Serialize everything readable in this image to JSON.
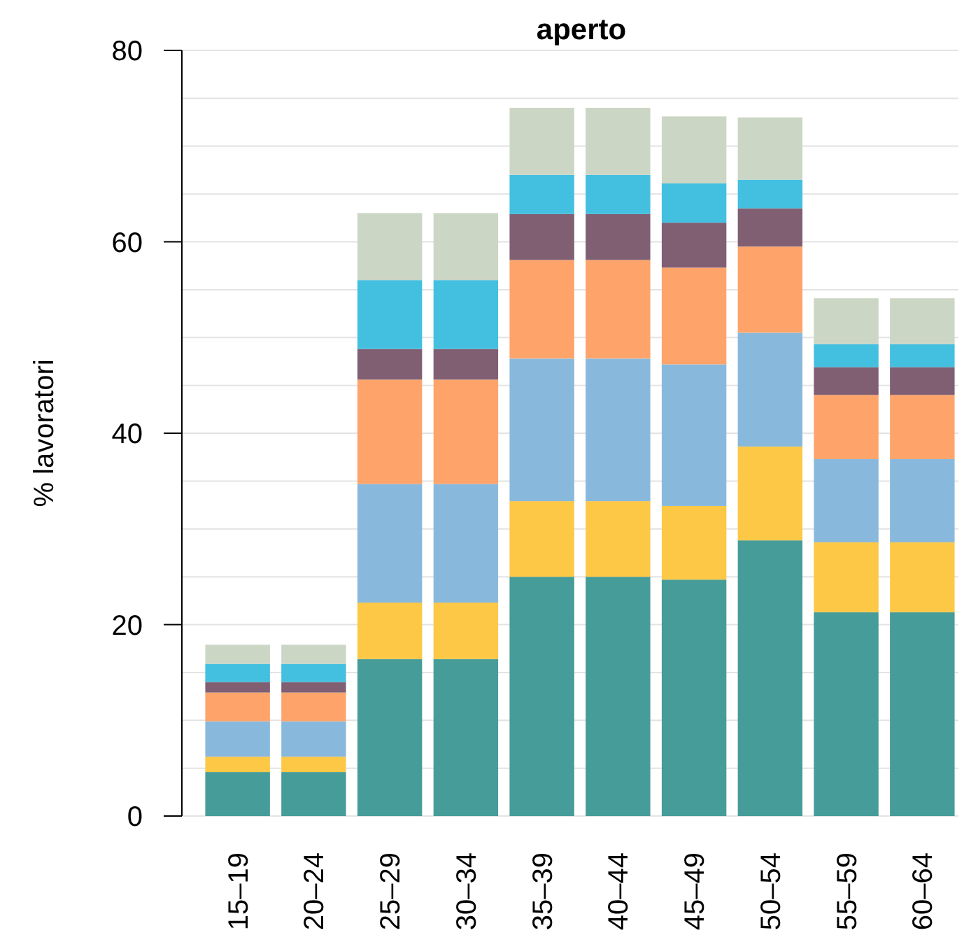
{
  "chart_data": {
    "type": "bar",
    "title": "aperto",
    "ylabel": "% lavoratori",
    "stacked": true,
    "grid": "y",
    "categories": [
      "15–19",
      "20–24",
      "25–29",
      "30–34",
      "35–39",
      "40–44",
      "45–49",
      "50–54",
      "55–59",
      "60–64"
    ],
    "ylim": [
      0,
      80
    ],
    "yticks": [
      0,
      {
        "value": 5,
        "label": null
      },
      {
        "value": 10,
        "label": null
      },
      {
        "value": 15,
        "label": null
      },
      20,
      {
        "value": 25,
        "label": null
      },
      {
        "value": 30,
        "label": null
      },
      {
        "value": 35,
        "label": null
      },
      40,
      {
        "value": 45,
        "label": null
      },
      {
        "value": 50,
        "label": null
      },
      {
        "value": 55,
        "label": null
      },
      60,
      {
        "value": 65,
        "label": null
      },
      {
        "value": 70,
        "label": null
      },
      {
        "value": 75,
        "label": null
      },
      80
    ],
    "series": [
      {
        "color": "#469c98",
        "values": [
          4.6,
          4.6,
          16.4,
          16.4,
          25.0,
          25.0,
          24.7,
          28.8,
          21.3,
          21.3
        ]
      },
      {
        "color": "#fcc846",
        "values": [
          1.6,
          1.6,
          5.9,
          5.9,
          7.9,
          7.9,
          7.7,
          9.8,
          7.3,
          7.3
        ]
      },
      {
        "color": "#88b9dc",
        "values": [
          3.7,
          3.7,
          12.4,
          12.4,
          14.9,
          14.9,
          14.8,
          11.9,
          8.7,
          8.7
        ]
      },
      {
        "color": "#fea46a",
        "values": [
          3.0,
          3.0,
          10.9,
          10.9,
          10.3,
          10.3,
          10.1,
          9.0,
          6.7,
          6.7
        ]
      },
      {
        "color": "#805f73",
        "values": [
          1.1,
          1.1,
          3.2,
          3.2,
          4.8,
          4.8,
          4.7,
          4.0,
          2.9,
          2.9
        ]
      },
      {
        "color": "#43bfe0",
        "values": [
          1.9,
          1.9,
          7.2,
          7.2,
          4.1,
          4.1,
          4.1,
          3.0,
          2.4,
          2.4
        ]
      },
      {
        "color": "#ccd6c4",
        "values": [
          2.0,
          2.0,
          7.0,
          7.0,
          7.0,
          7.0,
          7.0,
          6.5,
          4.8,
          4.8
        ]
      }
    ]
  }
}
